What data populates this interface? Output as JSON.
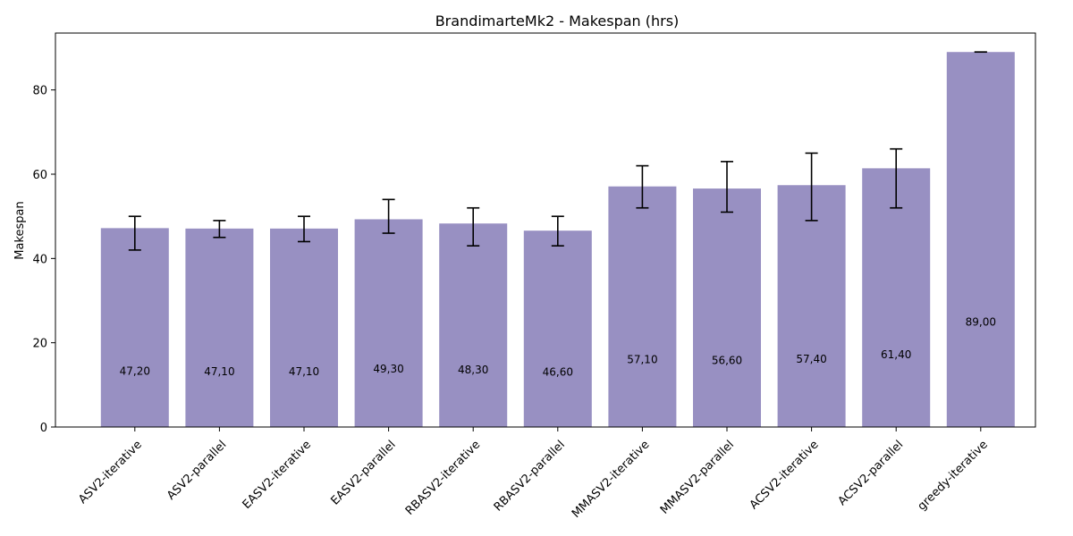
{
  "chart_data": {
    "type": "bar",
    "title": "BrandimarteMk2 - Makespan (hrs)",
    "xlabel": "",
    "ylabel": "Makespan",
    "ylim": [
      0,
      93.5
    ],
    "yticks": [
      0,
      20,
      40,
      60,
      80
    ],
    "grid": false,
    "bar_color": "#9890c2",
    "errorbar_color": "#000000",
    "categories": [
      "ASV2-iterative",
      "ASV2-parallel",
      "EASV2-iterative",
      "EASV2-parallel",
      "RBASV2-iterative",
      "RBASV2-parallel",
      "MMASV2-iterative",
      "MMASV2-parallel",
      "ACSV2-iterative",
      "ACSV2-parallel",
      "greedy-iterative"
    ],
    "values": [
      47.2,
      47.1,
      47.1,
      49.3,
      48.3,
      46.6,
      57.1,
      56.6,
      57.4,
      61.4,
      89.0
    ],
    "value_labels": [
      "47,20",
      "47,10",
      "47,10",
      "49,30",
      "48,30",
      "46,60",
      "57,10",
      "56,60",
      "57,40",
      "61,40",
      "89,00"
    ],
    "error_low": [
      42,
      45,
      44,
      46,
      43,
      43,
      52,
      51,
      49,
      52,
      89
    ],
    "error_high": [
      50,
      49,
      50,
      54,
      52,
      50,
      62,
      63,
      65,
      66,
      89
    ]
  }
}
